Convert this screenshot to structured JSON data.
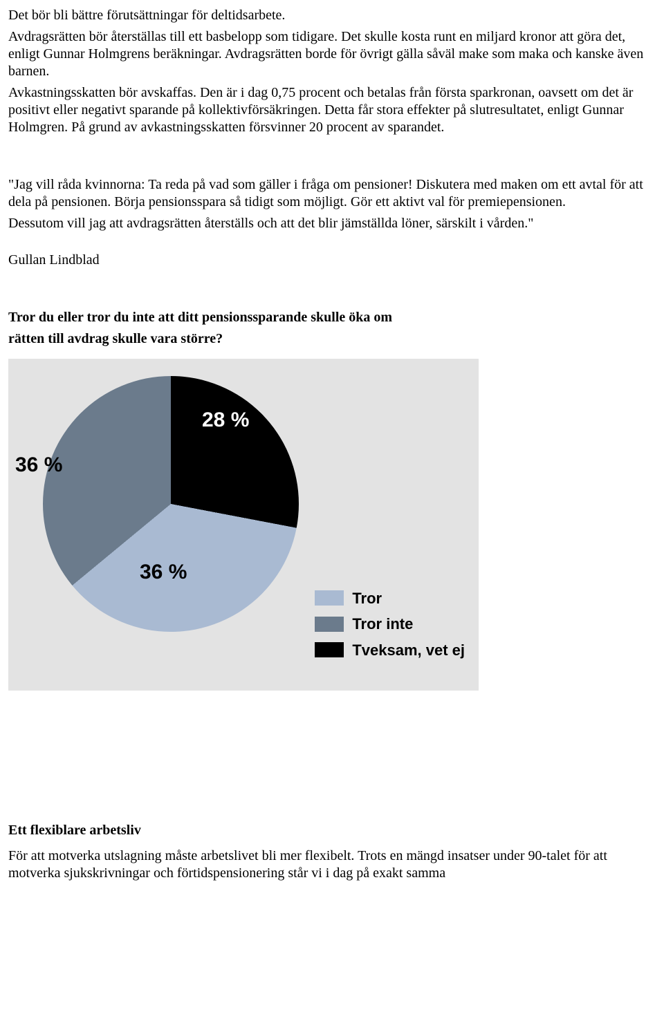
{
  "paragraphs": {
    "p1": "Det bör bli bättre förutsättningar för deltidsarbete.",
    "p2": "Avdragsrätten bör återställas till ett basbelopp som tidigare. Det skulle kosta runt en miljard kronor att göra det, enligt Gunnar Holmgrens beräkningar. Avdragsrätten borde för övrigt gälla såväl make som maka och kanske även barnen.",
    "p3": "Avkastningsskatten bör avskaffas. Den är i dag 0,75 procent och betalas från första sparkronan, oavsett om det är positivt eller negativt sparande på kollektivförsäkringen. Detta får stora effekter på slutresultatet, enligt Gunnar Holmgren. På grund av avkastningsskatten försvinner 20 procent av sparandet.",
    "p4": "\"Jag vill råda kvinnorna: Ta reda på vad som gäller i fråga om pensioner! Diskutera med maken om ett avtal för att dela på pensionen. Börja pensionsspara så tidigt som möjligt. Gör ett aktivt val för premiepensionen.",
    "p5": "Dessutom vill jag att avdragsrätten återställs och att det blir jämställda löner, särskilt i vården.\"",
    "author": "Gullan Lindblad",
    "question_l1": "Tror du eller tror du inte att ditt pensionssparande skulle öka om",
    "question_l2": "rätten till avdrag skulle vara större?",
    "heading2": "Ett flexiblare arbetsliv",
    "p6": "För att motverka utslagning måste arbetslivet bli mer flexibelt. Trots en mängd insatser under 90-talet för att motverka sjukskrivningar och förtidspensionering står vi i dag på exakt samma"
  },
  "chart": {
    "type": "pie",
    "background_color": "#e3e3e3",
    "slices": [
      {
        "label": "Tror",
        "value": 36,
        "display": "36 %",
        "color": "#a9bad2"
      },
      {
        "label": "Tror inte",
        "value": 36,
        "display": "36 %",
        "color": "#6b7b8c"
      },
      {
        "label": "Tveksam, vet ej",
        "value": 28,
        "display": "28 %",
        "color": "#000000"
      }
    ],
    "label_fontsize": 30,
    "label_fontweight": "900",
    "legend_fontsize": 22
  }
}
